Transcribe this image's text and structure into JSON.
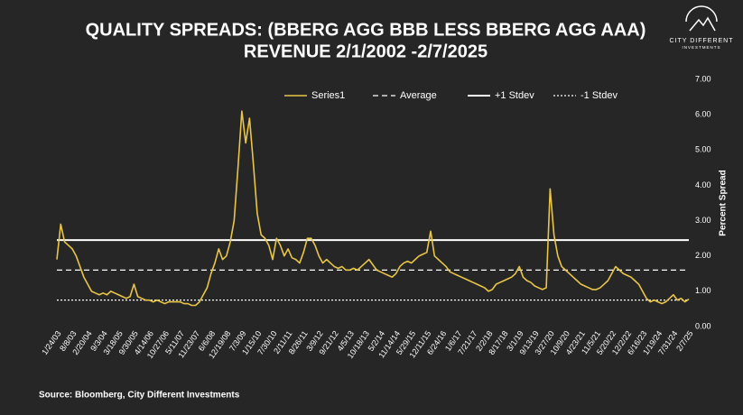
{
  "chart_data": {
    "type": "line",
    "title": "QUALITY SPREADS: (BBERG AGG BBB LESS BBERG AGG AAA)",
    "subtitle": "REVENUE 2/1/2002 -2/7/2025",
    "y_axis_label": "Percent Spread",
    "source": "Source: Bloomberg, City Different Investments",
    "logo": {
      "name": "CITY DIFFERENT",
      "tagline": "INVESTMENTS"
    },
    "categories": [
      "1/24/03",
      null,
      null,
      null,
      "8/8/03",
      null,
      null,
      null,
      "2/20/04",
      null,
      null,
      null,
      "9/3/04",
      null,
      null,
      null,
      "3/18/05",
      null,
      null,
      null,
      "9/30/05",
      null,
      null,
      null,
      "4/14/06",
      null,
      null,
      null,
      "10/27/06",
      null,
      null,
      null,
      "5/11/07",
      null,
      null,
      null,
      "11/23/07",
      null,
      null,
      null,
      "6/6/08",
      null,
      null,
      null,
      "12/19/08",
      null,
      null,
      null,
      "7/3/09",
      null,
      null,
      null,
      "1/15/10",
      null,
      null,
      null,
      "7/30/10",
      null,
      null,
      null,
      "2/11/11",
      null,
      null,
      null,
      "8/26/11",
      null,
      null,
      null,
      "3/9/12",
      null,
      null,
      null,
      "9/21/12",
      null,
      null,
      null,
      "4/5/13",
      null,
      null,
      null,
      "10/18/13",
      null,
      null,
      null,
      "5/2/14",
      null,
      null,
      null,
      "11/14/14",
      null,
      null,
      null,
      "5/29/15",
      null,
      null,
      null,
      "12/11/15",
      null,
      null,
      null,
      "6/24/16",
      null,
      null,
      null,
      "1/6/17",
      null,
      null,
      null,
      "7/21/17",
      null,
      null,
      null,
      "2/2/18",
      null,
      null,
      null,
      "8/17/18",
      null,
      null,
      null,
      "3/1/19",
      null,
      null,
      null,
      "9/13/19",
      null,
      null,
      null,
      "3/27/20",
      null,
      null,
      null,
      "10/9/20",
      null,
      null,
      null,
      "4/23/21",
      null,
      null,
      null,
      "11/5/21",
      null,
      null,
      null,
      "5/20/22",
      null,
      null,
      null,
      "12/2/22",
      null,
      null,
      null,
      "6/16/23",
      null,
      null,
      null,
      "1/19/24",
      null,
      null,
      null,
      "7/31/24",
      null,
      null,
      null,
      "2/7/25"
    ],
    "series": [
      {
        "name": "Series1",
        "color": "#e8c547",
        "values": [
          1.9,
          2.9,
          2.4,
          2.3,
          2.2,
          2.0,
          1.7,
          1.4,
          1.2,
          1.0,
          0.95,
          0.9,
          0.95,
          0.9,
          1.0,
          0.95,
          0.9,
          0.85,
          0.8,
          0.85,
          1.2,
          0.85,
          0.8,
          0.75,
          0.75,
          0.7,
          0.75,
          0.7,
          0.65,
          0.7,
          0.7,
          0.7,
          0.7,
          0.65,
          0.65,
          0.6,
          0.6,
          0.7,
          0.9,
          1.1,
          1.5,
          1.8,
          2.2,
          1.9,
          2.0,
          2.4,
          3.0,
          4.5,
          6.1,
          5.2,
          5.9,
          4.6,
          3.2,
          2.6,
          2.5,
          2.3,
          1.9,
          2.5,
          2.3,
          2.0,
          2.2,
          1.95,
          1.9,
          1.8,
          2.1,
          2.5,
          2.5,
          2.3,
          2.0,
          1.8,
          1.9,
          1.8,
          1.7,
          1.65,
          1.7,
          1.6,
          1.6,
          1.65,
          1.6,
          1.7,
          1.8,
          1.9,
          1.75,
          1.6,
          1.55,
          1.5,
          1.45,
          1.4,
          1.5,
          1.7,
          1.8,
          1.85,
          1.8,
          1.9,
          2.0,
          2.05,
          2.1,
          2.7,
          2.0,
          1.9,
          1.8,
          1.7,
          1.55,
          1.5,
          1.45,
          1.4,
          1.35,
          1.3,
          1.25,
          1.2,
          1.15,
          1.1,
          1.0,
          1.05,
          1.2,
          1.25,
          1.3,
          1.35,
          1.4,
          1.5,
          1.7,
          1.4,
          1.3,
          1.25,
          1.15,
          1.1,
          1.05,
          1.1,
          3.9,
          2.6,
          2.0,
          1.7,
          1.6,
          1.5,
          1.4,
          1.3,
          1.2,
          1.15,
          1.1,
          1.05,
          1.05,
          1.1,
          1.2,
          1.3,
          1.5,
          1.7,
          1.6,
          1.5,
          1.45,
          1.4,
          1.3,
          1.2,
          1.0,
          0.8,
          0.7,
          0.75,
          0.7,
          0.65,
          0.7,
          0.8,
          0.9,
          0.75,
          0.8,
          0.7,
          0.78
        ]
      }
    ],
    "reference_lines": [
      {
        "name": "Average",
        "value": 1.6,
        "color": "#ffffff",
        "style": "dashed"
      },
      {
        "name": "+1 Stdev",
        "value": 2.45,
        "color": "#ffffff",
        "style": "solid"
      },
      {
        "name": "-1 Stdev",
        "value": 0.75,
        "color": "#ffffff",
        "style": "dotted"
      }
    ],
    "ylim": [
      0,
      7
    ],
    "yticks": [
      {
        "value": 0,
        "label": "0.00"
      },
      {
        "value": 1,
        "label": "1.00"
      },
      {
        "value": 2,
        "label": "2.00"
      },
      {
        "value": 3,
        "label": "3.00"
      },
      {
        "value": 4,
        "label": "4.00"
      },
      {
        "value": 5,
        "label": "5.00"
      },
      {
        "value": 6,
        "label": "6.00"
      },
      {
        "value": 7,
        "label": "7.00"
      }
    ],
    "legend": "top",
    "grid": false
  }
}
